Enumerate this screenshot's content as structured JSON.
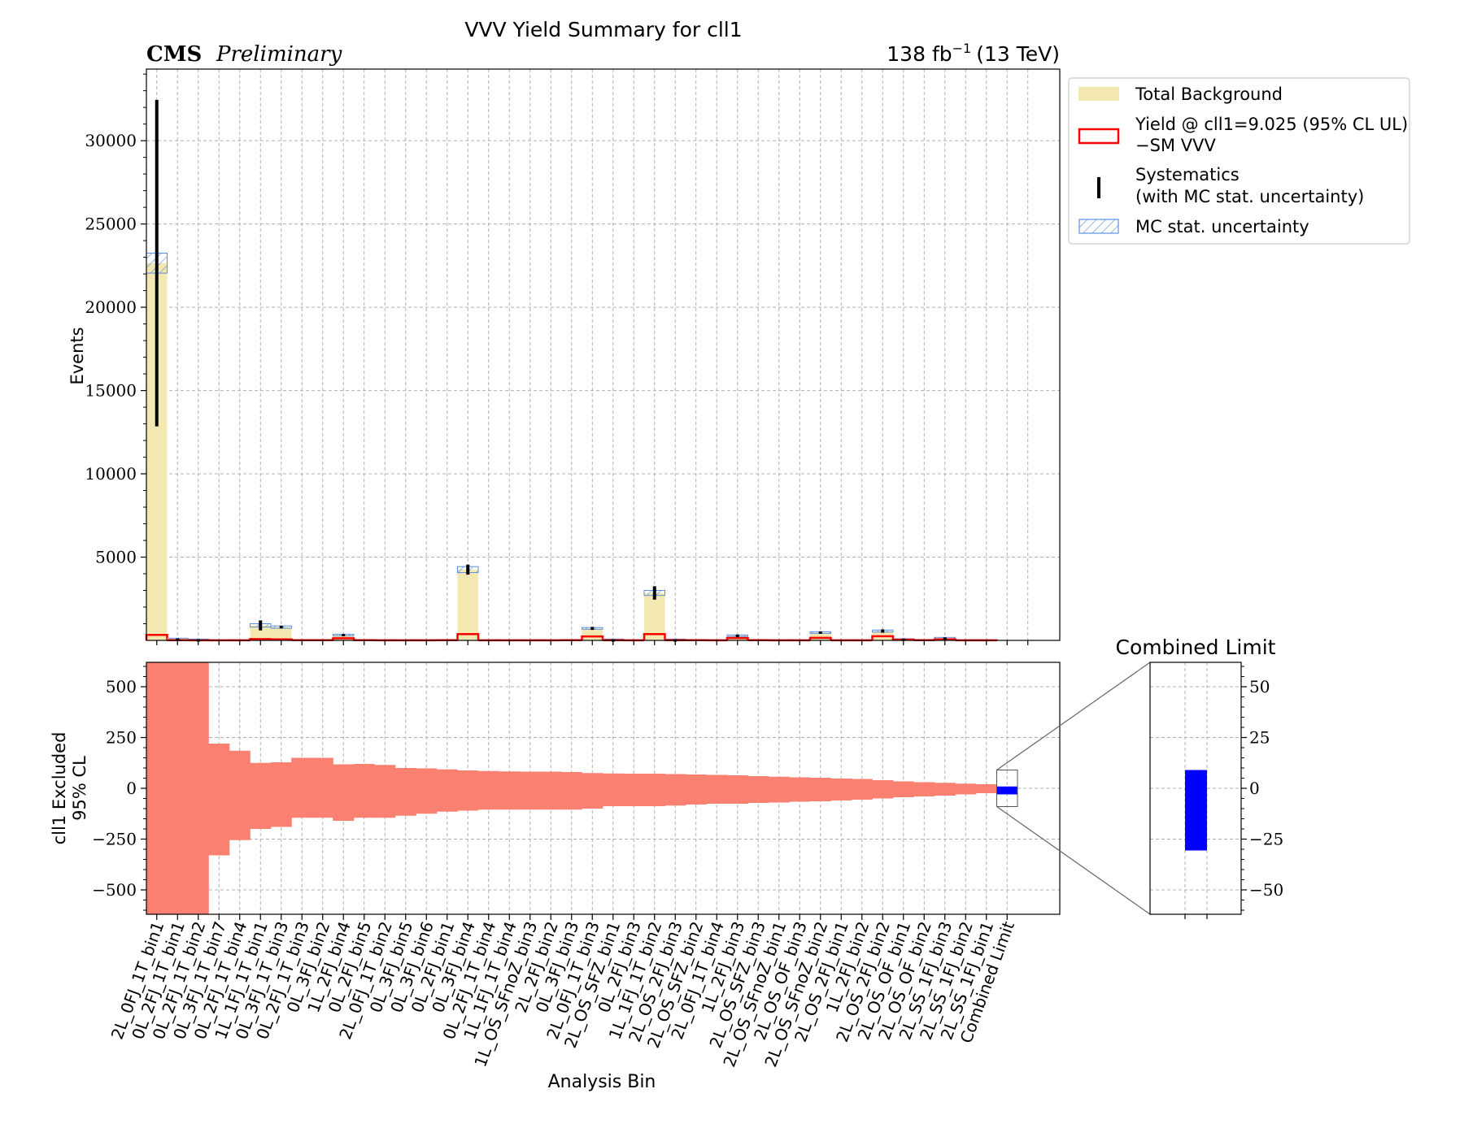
{
  "header": {
    "title": "VVV Yield Summary for cll1",
    "experiment": "CMS",
    "status": "Preliminary",
    "lumi": "138 fb",
    "lumi_exp": "−1",
    "energy": "(13 TeV)"
  },
  "legend": {
    "bkg": "Total Background",
    "signal_line1": "Yield @ cll1=9.025 (95% CL UL)",
    "signal_line2": "−SM VVV",
    "syst_line1": "Systematics",
    "syst_line2": "(with MC stat. uncertainty)",
    "mcstat": "MC stat. uncertainty"
  },
  "inset": {
    "title": "Combined Limit"
  },
  "colors": {
    "background": "#f2e8b0",
    "signal": "#ff0000",
    "mc_stat": "#5b8fe6",
    "limit_band": "#fa8072",
    "combined": "#0000ff"
  },
  "chart_data": [
    {
      "type": "bar",
      "panel": "yields",
      "ylabel": "Events",
      "ylim": [
        0,
        34300
      ],
      "yticks": [
        5000,
        10000,
        15000,
        20000,
        25000,
        30000
      ],
      "grid": true,
      "legend_position": "outside-right",
      "categories": [
        "2L_0FJ_1T_bin1",
        "0L_2FJ_1T_bin1",
        "0L_2FJ_1T_bin2",
        "0L_3FJ_1T_bin7",
        "0L_2FJ_1T_bin4",
        "1L_1FJ_1T_bin1",
        "0L_3FJ_1T_bin3",
        "0L_2FJ_1T_bin3",
        "0L_3FJ_bin2",
        "1L_2FJ_bin4",
        "0L_2FJ_bin5",
        "2L_0FJ_1T_bin2",
        "0L_3FJ_bin5",
        "0L_3FJ_bin6",
        "0L_2FJ_bin1",
        "0L_3FJ_bin4",
        "0L_2FJ_1T_bin4",
        "1L_1FJ_1T_bin4",
        "1L_OS_SFnoZ_bin3",
        "2L_2FJ_bin2",
        "0L_3FJ_bin3",
        "2L_0FJ_1T_bin3",
        "2L_OS_SFZ_bin1",
        "0L_2FJ_bin3",
        "1L_1FJ_1T_bin2",
        "2L_OS_2FJ_bin3",
        "2L_OS_SFZ_bin2",
        "2L_0FJ_1T_bin4",
        "1L_2FJ_bin3",
        "2L_OS_SFZ_bin3",
        "2L_OS_SFnoZ_bin1",
        "2L_OS_OF_bin3",
        "2L_OS_SFnoZ_bin2",
        "2L_OS_2FJ_bin1",
        "1L_2FJ_bin2",
        "2L_OS_2FJ_bin2",
        "2L_OS_OF_bin1",
        "2L_OS_OF_bin2",
        "2L_SS_1FJ_bin3",
        "2L_SS_1FJ_bin2",
        "2L_SS_1FJ_bin1"
      ],
      "series": [
        {
          "name": "Total Background",
          "values": [
            22650,
            100,
            60,
            0,
            0,
            900,
            800,
            0,
            0,
            330,
            0,
            0,
            0,
            0,
            0,
            4250,
            0,
            0,
            0,
            0,
            0,
            720,
            60,
            0,
            2850,
            60,
            0,
            0,
            300,
            0,
            0,
            0,
            480,
            0,
            0,
            560,
            80,
            0,
            150,
            0,
            0
          ]
        },
        {
          "name": "Yield @ cll1=9.025 (95% CL UL) −SM VVV",
          "values": [
            330,
            15,
            5,
            5,
            5,
            80,
            60,
            10,
            15,
            130,
            10,
            5,
            5,
            5,
            10,
            380,
            5,
            5,
            5,
            5,
            10,
            240,
            10,
            5,
            380,
            15,
            10,
            5,
            140,
            10,
            5,
            5,
            150,
            5,
            5,
            250,
            40,
            15,
            60,
            5,
            5
          ]
        },
        {
          "name": "MC stat. uncertainty",
          "values": [
            600,
            30,
            20,
            0,
            0,
            100,
            70,
            0,
            0,
            40,
            0,
            0,
            0,
            0,
            0,
            180,
            0,
            0,
            0,
            0,
            0,
            50,
            20,
            0,
            150,
            20,
            0,
            0,
            30,
            0,
            0,
            0,
            40,
            0,
            0,
            60,
            20,
            0,
            30,
            0,
            0
          ]
        },
        {
          "name": "Systematics (with MC stat. uncertainty)",
          "values": [
            9800,
            20,
            10,
            0,
            0,
            300,
            80,
            0,
            0,
            60,
            0,
            0,
            0,
            0,
            0,
            300,
            0,
            0,
            0,
            0,
            0,
            90,
            10,
            0,
            400,
            10,
            0,
            0,
            50,
            0,
            0,
            0,
            60,
            0,
            0,
            100,
            30,
            0,
            30,
            0,
            0
          ]
        }
      ]
    },
    {
      "type": "bar",
      "panel": "limits",
      "ylabel": "cll1 Excluded\n95% CL",
      "xlabel": "Analysis Bin",
      "ylim": [
        -620,
        620
      ],
      "yticks": [
        -500,
        -250,
        0,
        250,
        500
      ],
      "grid": true,
      "categories": [
        "2L_0FJ_1T_bin1",
        "0L_2FJ_1T_bin1",
        "0L_2FJ_1T_bin2",
        "0L_3FJ_1T_bin7",
        "0L_2FJ_1T_bin4",
        "1L_1FJ_1T_bin1",
        "0L_3FJ_1T_bin3",
        "0L_2FJ_1T_bin3",
        "0L_3FJ_bin2",
        "1L_2FJ_bin4",
        "0L_2FJ_bin5",
        "2L_0FJ_1T_bin2",
        "0L_3FJ_bin5",
        "0L_3FJ_bin6",
        "0L_2FJ_bin1",
        "0L_3FJ_bin4",
        "0L_2FJ_1T_bin4",
        "1L_1FJ_1T_bin4",
        "1L_OS_SFnoZ_bin3",
        "2L_2FJ_bin2",
        "0L_3FJ_bin3",
        "2L_0FJ_1T_bin3",
        "2L_OS_SFZ_bin1",
        "0L_2FJ_bin3",
        "1L_1FJ_1T_bin2",
        "2L_OS_2FJ_bin3",
        "2L_OS_SFZ_bin2",
        "2L_0FJ_1T_bin4",
        "1L_2FJ_bin3",
        "2L_OS_SFZ_bin3",
        "2L_OS_SFnoZ_bin1",
        "2L_OS_OF_bin3",
        "2L_OS_SFnoZ_bin2",
        "2L_OS_2FJ_bin1",
        "1L_2FJ_bin2",
        "2L_OS_2FJ_bin2",
        "2L_OS_OF_bin1",
        "2L_OS_OF_bin2",
        "2L_SS_1FJ_bin3",
        "2L_SS_1FJ_bin2",
        "2L_SS_1FJ_bin1",
        "Combined Limit"
      ],
      "series": [
        {
          "name": "upper",
          "values": [
            620,
            620,
            620,
            220,
            185,
            125,
            128,
            150,
            150,
            118,
            120,
            115,
            100,
            98,
            93,
            88,
            85,
            83,
            82,
            82,
            80,
            75,
            73,
            72,
            72,
            70,
            68,
            66,
            64,
            60,
            57,
            54,
            52,
            48,
            46,
            40,
            34,
            30,
            27,
            23,
            20,
            9
          ]
        },
        {
          "name": "lower",
          "values": [
            -620,
            -620,
            -620,
            -330,
            -255,
            -200,
            -190,
            -145,
            -145,
            -160,
            -145,
            -145,
            -135,
            -125,
            -115,
            -110,
            -105,
            -105,
            -105,
            -105,
            -105,
            -100,
            -88,
            -88,
            -88,
            -85,
            -80,
            -76,
            -76,
            -72,
            -70,
            -66,
            -64,
            -60,
            -56,
            -50,
            -44,
            -40,
            -36,
            -30,
            -24,
            -30
          ]
        }
      ]
    },
    {
      "type": "bar",
      "panel": "combined-inset",
      "title": "Combined Limit",
      "ylim": [
        -62,
        62
      ],
      "yticks": [
        -50,
        -25,
        0,
        25,
        50
      ],
      "categories": [
        "Combined Limit"
      ],
      "series": [
        {
          "name": "combined",
          "lower": -30.6,
          "upper": 9.0
        }
      ]
    }
  ]
}
